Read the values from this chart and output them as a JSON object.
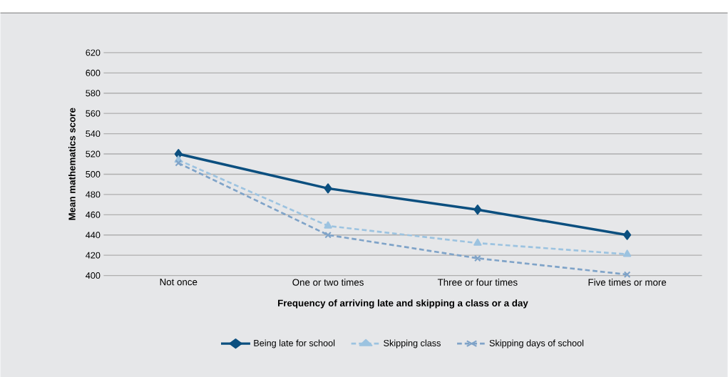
{
  "chart_data": {
    "type": "line",
    "xlabel": "Frequency of arriving late and skipping a class or a day",
    "ylabel": "Mean mathematics score",
    "categories": [
      "Not once",
      "One or two times",
      "Three or four times",
      "Five times or more"
    ],
    "series": [
      {
        "name": "Being late for school",
        "color": "#0b4f7f",
        "values": [
          520,
          486,
          465,
          440
        ],
        "marker": "diamond",
        "line_style": "solid"
      },
      {
        "name": "Skipping class",
        "color": "#9cc3e0",
        "values": [
          514,
          449,
          432,
          421
        ],
        "marker": "triangle",
        "line_style": "dashed"
      },
      {
        "name": "Skipping days of school",
        "color": "#7fa3c8",
        "values": [
          511,
          440,
          417,
          401
        ],
        "marker": "cross",
        "line_style": "dashed"
      }
    ],
    "ylim": [
      400,
      620
    ],
    "yticks": [
      400,
      420,
      440,
      460,
      480,
      500,
      520,
      540,
      560,
      580,
      600,
      620
    ],
    "grid": "y",
    "legend": "bottom"
  }
}
